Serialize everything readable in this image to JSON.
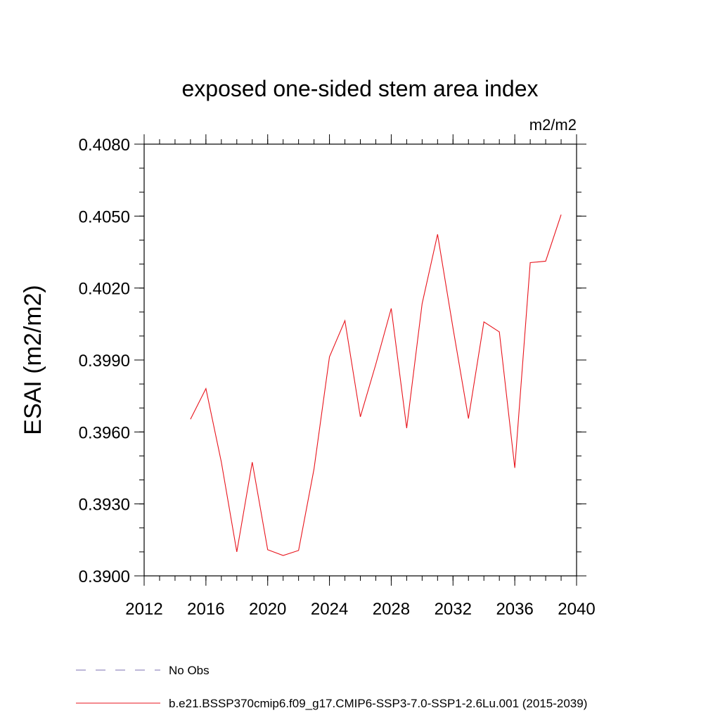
{
  "chart_data": {
    "type": "line",
    "title": "exposed one-sided stem area index",
    "units": "m2/m2",
    "ylabel": "ESAI  (m2/m2)",
    "xlabel": "",
    "xlim": [
      2012,
      2040
    ],
    "ylim": [
      0.39,
      0.408
    ],
    "xticks": [
      "2012",
      "2016",
      "2020",
      "2024",
      "2028",
      "2032",
      "2036",
      "2040"
    ],
    "yticks": [
      "0.3900",
      "0.3930",
      "0.3960",
      "0.3990",
      "0.4020",
      "0.4050",
      "0.4080"
    ],
    "grid": false,
    "legend_placement": "bottom",
    "series": [
      {
        "name": "No Obs",
        "color": "#7b6fb0",
        "dashed": true,
        "x": [],
        "values": []
      },
      {
        "name": "b.e21.BSSP370cmip6.f09_g17.CMIP6-SSP3-7.0-SSP1-2.6Lu.001 (2015-2039)",
        "color": "#e8141c",
        "dashed": false,
        "x": [
          2015,
          2016,
          2017,
          2018,
          2019,
          2020,
          2021,
          2022,
          2023,
          2024,
          2025,
          2026,
          2027,
          2028,
          2029,
          2030,
          2031,
          2032,
          2033,
          2034,
          2035,
          2036,
          2037,
          2038,
          2039
        ],
        "values": [
          0.39653,
          0.39781,
          0.39474,
          0.391,
          0.39474,
          0.39109,
          0.39085,
          0.39106,
          0.39446,
          0.39913,
          0.40064,
          0.39663,
          0.39882,
          0.40115,
          0.39616,
          0.40135,
          0.40424,
          0.40033,
          0.39656,
          0.40059,
          0.40017,
          0.3945,
          0.40306,
          0.40312,
          0.40506
        ]
      }
    ]
  }
}
